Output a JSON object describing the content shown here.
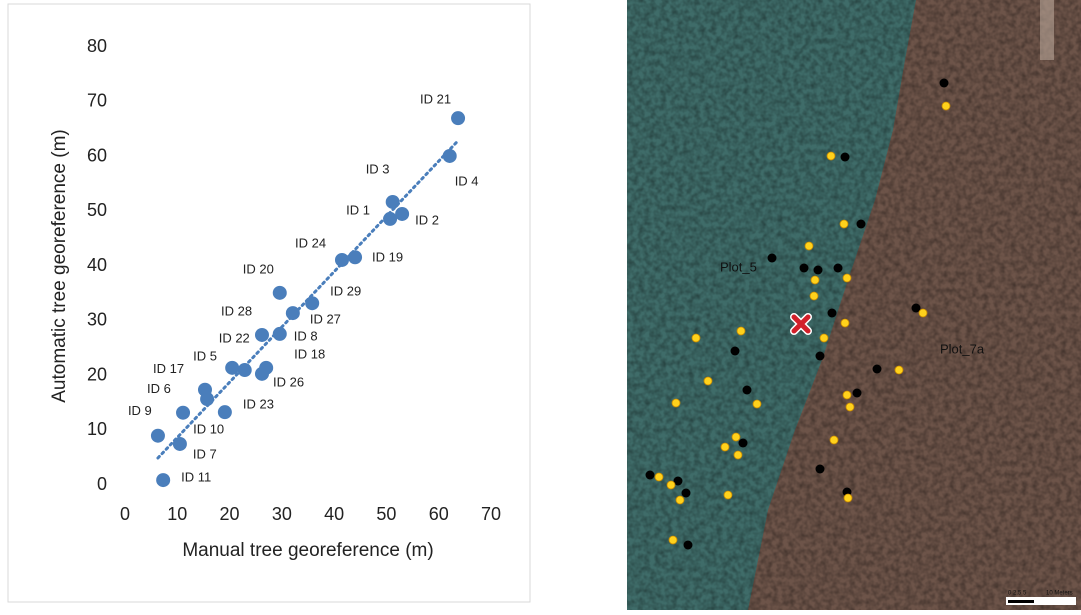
{
  "chart_data": {
    "type": "scatter",
    "x_label": "Manual  tree georeference (m)",
    "y_label": "Automatic tree georeference (m)",
    "x": [
      63.7,
      62.1,
      51.2,
      50.7,
      53.0,
      41.5,
      44.0,
      29.6,
      35.8,
      32.1,
      26.2,
      29.6,
      22.9,
      20.5,
      27.0,
      26.2,
      15.3,
      11.1,
      15.7,
      19.1,
      6.3,
      10.5,
      7.3
    ],
    "values": [
      67.0,
      60.1,
      51.7,
      48.6,
      49.5,
      41.1,
      41.6,
      35.1,
      33.2,
      31.4,
      27.4,
      27.6,
      21.0,
      21.4,
      21.4,
      20.3,
      17.4,
      13.2,
      15.7,
      13.3,
      9.0,
      7.5,
      0.9
    ],
    "point_labels": [
      "ID 21",
      "ID 4",
      "ID 3",
      "ID 1",
      "ID 2",
      "ID 24",
      "ID 19",
      "ID 20",
      "ID 29",
      "ID 27",
      "ID 28",
      "ID 8",
      "ID 22",
      "ID 5",
      "ID 18",
      "ID 26",
      "ID 17",
      "ID 6",
      "ID 10",
      "ID 23",
      "ID 9",
      "ID 7",
      "ID 11"
    ],
    "color": "#4a7ebb",
    "trendline": true,
    "xlim": [
      0,
      70
    ],
    "xticks": [
      0,
      10,
      20,
      30,
      40,
      50,
      60,
      70
    ],
    "ylim": [
      0,
      80
    ],
    "yticks": [
      0,
      10,
      20,
      30,
      40,
      50,
      60,
      70,
      80
    ]
  },
  "map": {
    "labels": [
      "Plot_5",
      "Plot_7a"
    ],
    "scale_ticks": "0 2.5 5",
    "scale_unit": "10 Meters"
  }
}
